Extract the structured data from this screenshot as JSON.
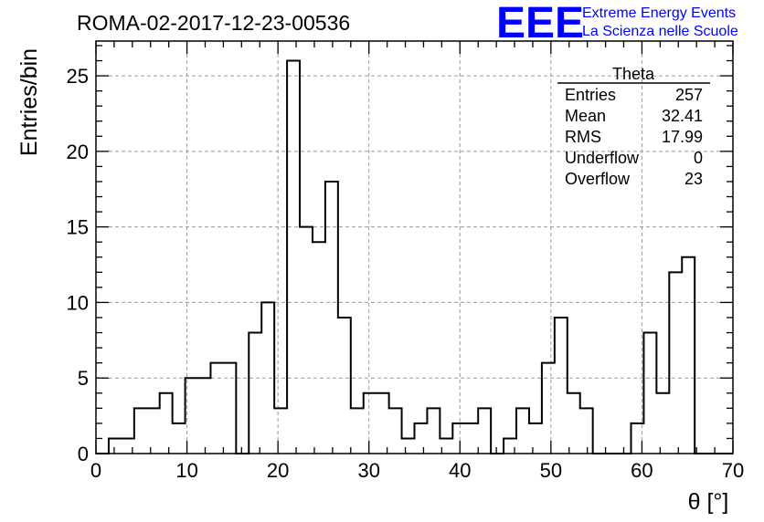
{
  "chart_data": {
    "type": "bar",
    "title": "ROMA-02-2017-12-23-00536",
    "xlabel": "θ [°]",
    "ylabel": "Entries/bin",
    "xlim": [
      0,
      70
    ],
    "ylim": [
      0,
      27.3
    ],
    "bin_width": 1.4,
    "x_ticks": [
      0,
      10,
      20,
      30,
      40,
      50,
      60,
      70
    ],
    "y_ticks": [
      0,
      5,
      10,
      15,
      20,
      25
    ],
    "grid": true,
    "histogram_style": "step",
    "values": [
      0,
      1,
      1,
      3,
      3,
      4,
      2,
      5,
      5,
      6,
      6,
      0,
      8,
      10,
      3,
      26,
      15,
      14,
      18,
      9,
      3,
      4,
      4,
      3,
      1,
      2,
      3,
      1,
      2,
      2,
      3,
      0,
      1,
      3,
      2,
      6,
      9,
      4,
      3,
      0,
      0,
      0,
      2,
      8,
      4,
      12,
      13,
      0,
      0,
      0
    ],
    "stats_box": {
      "name": "Theta",
      "rows": [
        {
          "label": "Entries",
          "value": "257"
        },
        {
          "label": "Mean",
          "value": "32.41"
        },
        {
          "label": "RMS",
          "value": "17.99"
        },
        {
          "label": "Underflow",
          "value": "0"
        },
        {
          "label": "Overflow",
          "value": "23"
        }
      ]
    },
    "logo": {
      "mark": "EEE",
      "line1": "Extreme Energy Events",
      "line2": "La Scienza nelle Scuole",
      "color": "#0000ff"
    }
  }
}
